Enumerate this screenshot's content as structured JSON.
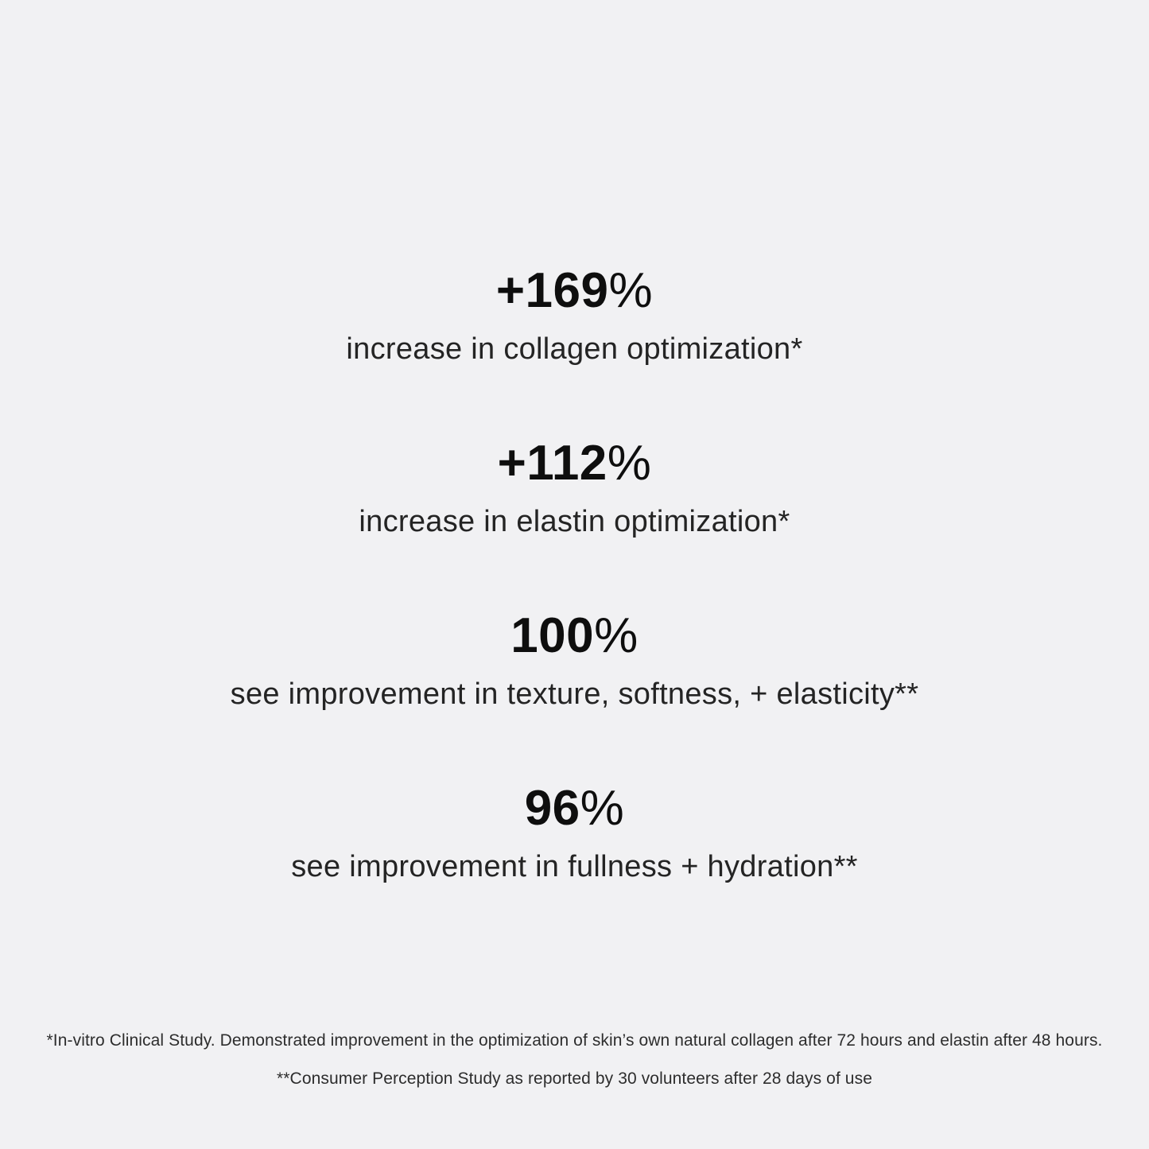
{
  "page": {
    "background_color": "#f1f1f3",
    "text_color": "#0e0e0e"
  },
  "stats": [
    {
      "value": "+169",
      "suffix": "%",
      "label": "increase in collagen optimization*"
    },
    {
      "value": "+112",
      "suffix": "%",
      "label": "increase in elastin optimization*"
    },
    {
      "value": "100",
      "suffix": "%",
      "label": "see improvement in texture, softness, + elasticity**"
    },
    {
      "value": "96",
      "suffix": "%",
      "label": "see improvement in fullness + hydration**"
    }
  ],
  "footnotes": [
    "*In-vitro Clinical Study. Demonstrated improvement in the optimization of skin’s own natural collagen after 72 hours and elastin after 48 hours.",
    "**Consumer Perception Study as reported by 30 volunteers after 28 days of use"
  ]
}
